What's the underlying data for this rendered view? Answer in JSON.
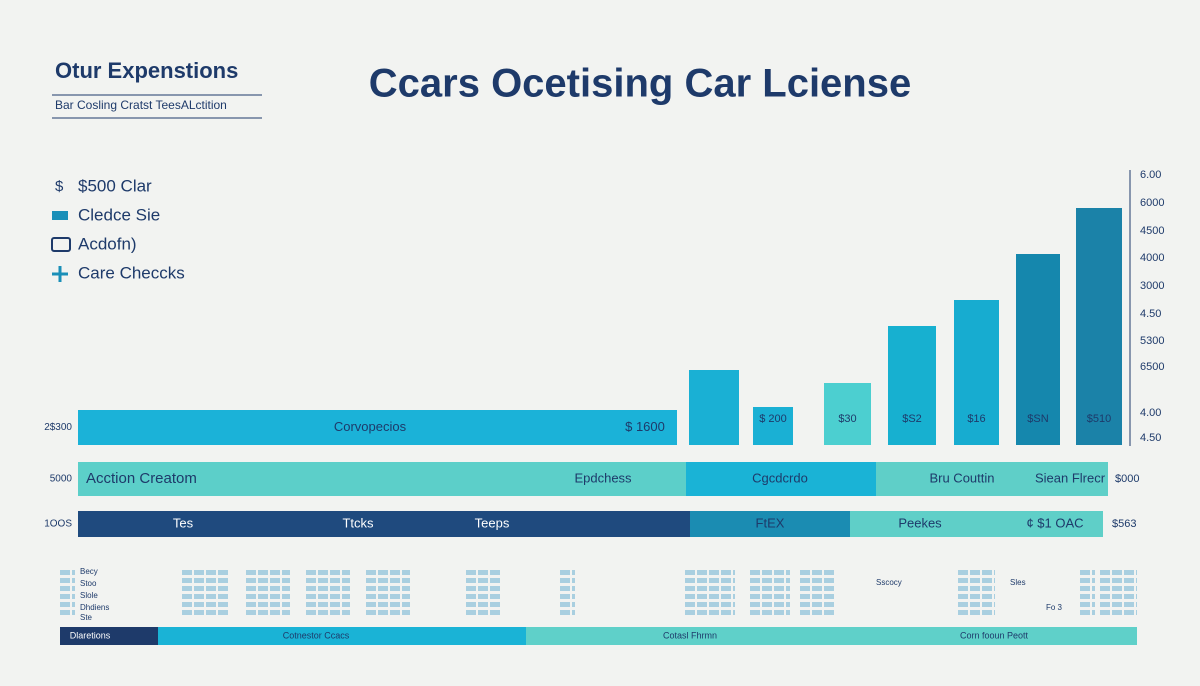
{
  "header": {
    "brand": "Otur Expenstions",
    "tagline": "Bar Cosling Cratst TeesALctition",
    "title": "Ccars Ocetising Car Lciense"
  },
  "legend": [
    "$500 Clar",
    "Cledce Sie",
    "Acdofn)",
    "Care Checcks"
  ],
  "axis_labels": [
    "6.00",
    "6000",
    "4500",
    "4000",
    "3000",
    "4.50",
    "5300",
    "6500",
    "4.00",
    "4.50"
  ],
  "column_labels": [
    "$ 200",
    "$30",
    "$S2",
    "$16",
    "$SN",
    "$510"
  ],
  "rows": [
    {
      "left": "2$300",
      "texts": [
        "Corvopecios",
        "$ 1600"
      ]
    },
    {
      "left": "5000",
      "texts": [
        "Acction Creatom",
        "Epdchess",
        "Cgcdcrdo",
        "Bru Couttin",
        "Siean Flrecr"
      ],
      "right": "$000"
    },
    {
      "left": "1OOS",
      "texts": [
        "Tes",
        "Ttcks",
        "Teeps",
        "FtEX",
        "Peekes",
        "¢ $1 OAC"
      ],
      "right": "$563"
    }
  ],
  "table_notes": [
    "Becy",
    "Stoo",
    "Slole",
    "Dhdiens",
    "Ste",
    "Sscocy",
    "Sles",
    "Fo 3"
  ],
  "footer": [
    "Dlaretions",
    "Cotnestor Ccacs",
    "Cotasl Fhrmn",
    "Corn fooun Peott"
  ]
}
